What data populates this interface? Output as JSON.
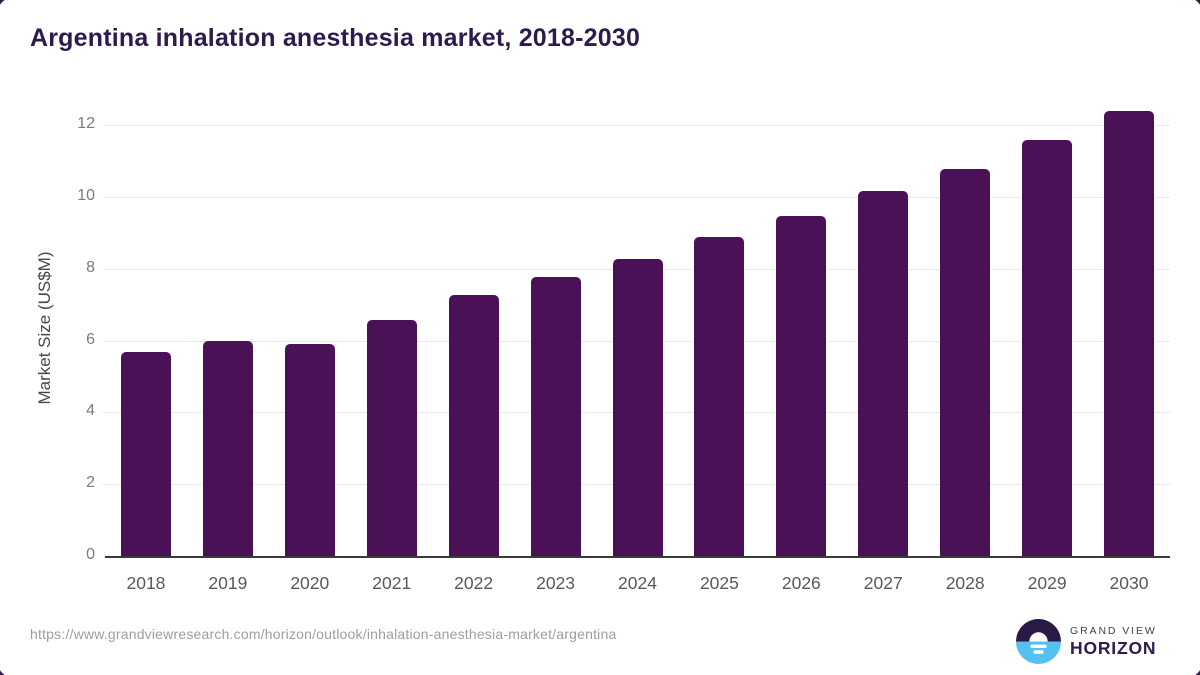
{
  "title": "Argentina inhalation anesthesia market, 2018-2030",
  "chart_data": {
    "type": "bar",
    "categories": [
      "2018",
      "2019",
      "2020",
      "2021",
      "2022",
      "2023",
      "2024",
      "2025",
      "2026",
      "2027",
      "2028",
      "2029",
      "2030"
    ],
    "values": [
      5.67,
      5.98,
      5.9,
      6.58,
      7.28,
      7.78,
      8.28,
      8.88,
      9.47,
      10.17,
      10.78,
      11.58,
      12.39
    ],
    "title": "Argentina inhalation anesthesia market, 2018-2030",
    "xlabel": "",
    "ylabel": "Market Size (US$M)",
    "ylim": [
      0,
      12.7
    ],
    "yticks": [
      0,
      2,
      4,
      6,
      8,
      10,
      12
    ],
    "grid": true,
    "legend": "none",
    "bar_color": "#4a1157"
  },
  "footer": {
    "source_url": "https://www.grandviewresearch.com/horizon/outlook/inhalation-anesthesia-market/argentina",
    "brand": {
      "top": "GRAND VIEW",
      "bottom": "HORIZON"
    }
  },
  "colors": {
    "title_text": "#2f1a4d",
    "bar_fill": "#4a1157",
    "axis_line": "#3a3a3a",
    "gridline": "#e8e8e8",
    "tick_text": "#7b7b7b",
    "xtick_text": "#595959",
    "url_text": "#9e9e9e",
    "logo_purple": "#2b1a46",
    "logo_blue": "#56c1f0"
  }
}
